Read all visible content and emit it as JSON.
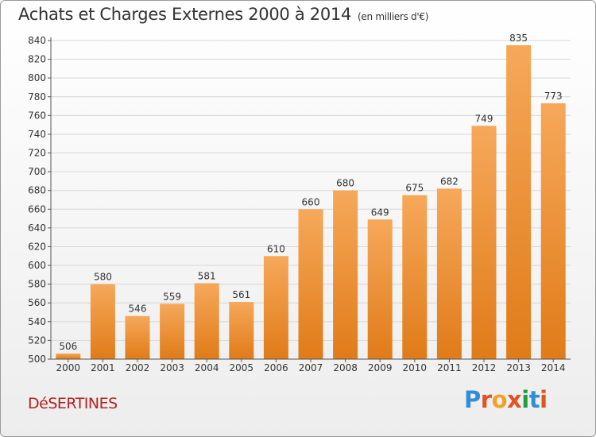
{
  "header": {
    "title": "Achats et Charges Externes 2000 à 2014",
    "unit": "(en milliers d'€)"
  },
  "footer": {
    "commune": "DéSERTINES",
    "brand": "Proxiti"
  },
  "colors": {
    "bar_light": "#f6a85a",
    "bar_dark": "#e07b18",
    "commune_text": "#b22222",
    "grid": "#d6d6d6",
    "brand_letters": [
      "#2e8fd6",
      "#e0541f",
      "#f0a12b",
      "#e0541f",
      "#1e9f3a",
      "#2e8fd6",
      "#e0541f"
    ]
  },
  "chart_data": {
    "type": "bar",
    "title": "Achats et Charges Externes 2000 à 2014",
    "subtitle": "(en milliers d'€)",
    "xlabel": "",
    "ylabel": "",
    "categories": [
      "2000",
      "2001",
      "2002",
      "2003",
      "2004",
      "2005",
      "2006",
      "2007",
      "2008",
      "2009",
      "2010",
      "2011",
      "2012",
      "2013",
      "2014"
    ],
    "values": [
      506,
      580,
      546,
      559,
      581,
      561,
      610,
      660,
      680,
      649,
      675,
      682,
      749,
      835,
      773
    ],
    "ylim": [
      500,
      840
    ],
    "yticks": [
      500,
      520,
      540,
      560,
      580,
      600,
      620,
      640,
      660,
      680,
      700,
      720,
      740,
      760,
      780,
      800,
      820,
      840
    ],
    "grid": true,
    "data_labels": true
  }
}
